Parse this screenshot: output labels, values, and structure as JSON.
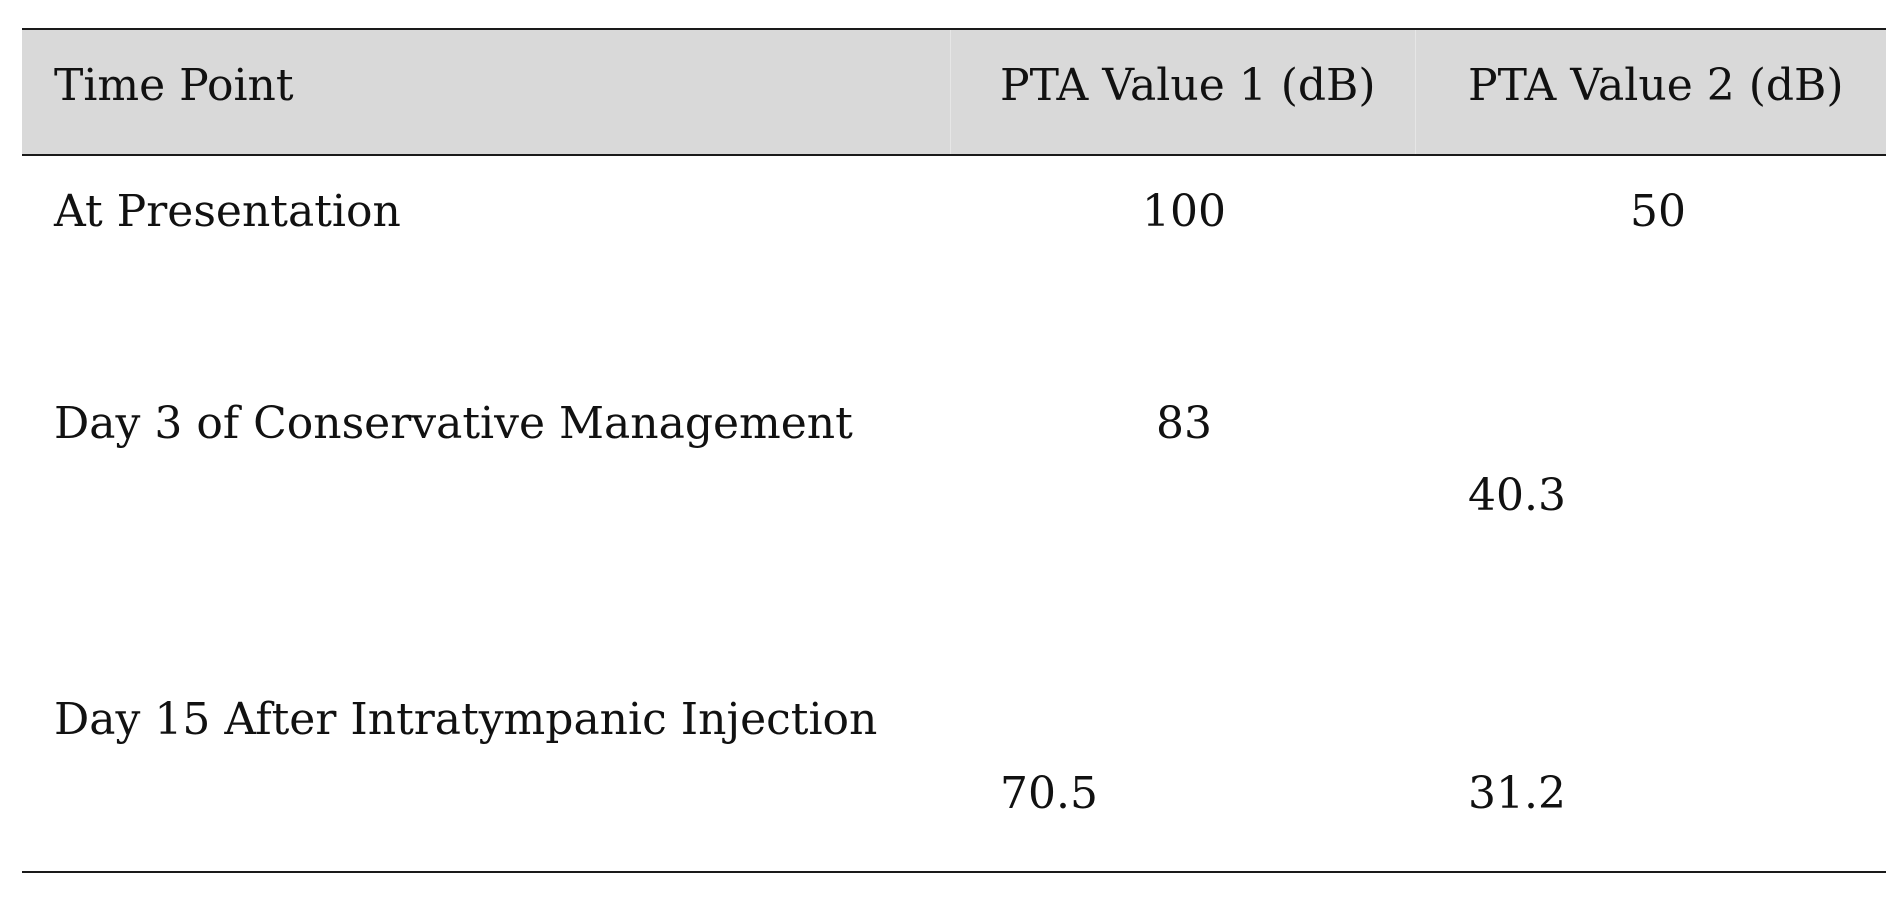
{
  "table": {
    "headers": [
      "Time Point",
      "PTA Value 1 (dB)",
      "PTA Value 2 (dB)"
    ],
    "rows": [
      {
        "time_point": "At Presentation",
        "pta1": "100",
        "pta2": "50"
      },
      {
        "time_point": "Day 3 of Conservative Management",
        "pta1": "83",
        "pta2": "40.3"
      },
      {
        "time_point": "Day 15 After Intratympanic Injection",
        "pta1": "70.5",
        "pta2": "31.2"
      }
    ]
  }
}
